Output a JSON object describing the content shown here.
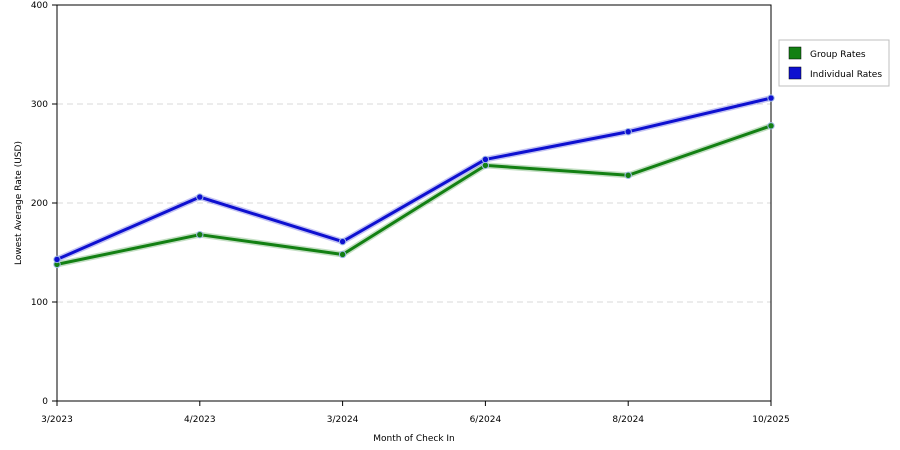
{
  "chart_data": {
    "type": "line",
    "title": "",
    "xlabel": "Month of Check In",
    "ylabel": "Lowest Average Rate (USD)",
    "categories": [
      "3/2023",
      "4/2023",
      "3/2024",
      "6/2024",
      "8/2024",
      "10/2025"
    ],
    "ylim": [
      0,
      400
    ],
    "yticks": [
      0,
      100,
      200,
      300,
      400
    ],
    "grid": true,
    "legend_position": "right",
    "series": [
      {
        "name": "Group Rates",
        "color": "#138013",
        "values": [
          138,
          168,
          148,
          238,
          228,
          278
        ]
      },
      {
        "name": "Individual Rates",
        "color": "#0e10d0",
        "values": [
          143,
          206,
          161,
          244,
          272,
          306
        ]
      }
    ]
  }
}
